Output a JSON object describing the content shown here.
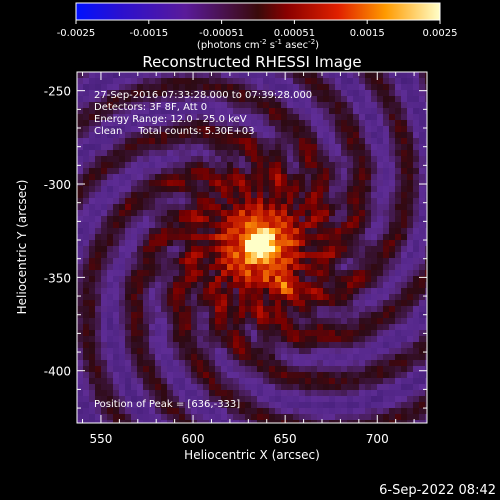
{
  "chart_data": {
    "type": "heatmap",
    "title": "Reconstructed RHESSI Image",
    "xlabel": "Heliocentric X (arcsec)",
    "ylabel": "Heliocentric Y (arcsec)",
    "xlim": [
      537,
      727
    ],
    "ylim": [
      -428,
      -240
    ],
    "x_ticks": [
      550,
      600,
      650,
      700
    ],
    "y_ticks": [
      -250,
      -300,
      -350,
      -400
    ],
    "colorbar": {
      "ticks": [
        "-0.0025",
        "-0.0015",
        "-0.00051",
        "0.00051",
        "0.0015",
        "0.0025"
      ],
      "range": [
        -0.0025,
        0.0025
      ],
      "unit_text": "(photons cm",
      "unit_sup1": "-2",
      "unit_mid1": " s",
      "unit_sup2": "-1",
      "unit_mid2": " asec",
      "unit_sup3": "-2",
      "unit_end": ")"
    },
    "annotations": [
      "27-Sep-2016 07:33:28.000 to 07:39:28.000",
      "Detectors: 3F 8F, Att 0",
      "Energy Range: 12.0 - 25.0 keV",
      "Clean     Total counts: 5.30E+03"
    ],
    "peak_label": "Position of Peak = [636,-333]",
    "peak": [
      636,
      -333
    ],
    "secondary_source": [
      650,
      -355
    ]
  },
  "footer_timestamp": "6-Sep-2022 08:42"
}
